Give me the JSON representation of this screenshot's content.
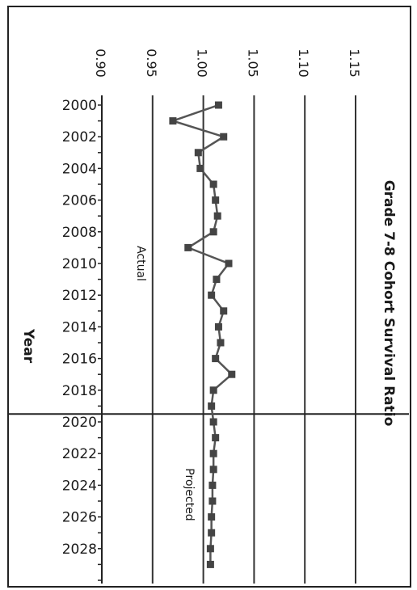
{
  "chart_data": {
    "type": "line",
    "title": "Grade 7-8 Cohort Survival Ratio",
    "xlabel": "Year",
    "ylabel": "",
    "orientation": "rotated-90-clockwise",
    "ylim": [
      0.9,
      1.15
    ],
    "ytick_values": [
      0.9,
      0.95,
      1.0,
      1.05,
      1.1,
      1.15
    ],
    "ytick_labels": [
      "0.90",
      "0.95",
      "1.00",
      "1.05",
      "1.10",
      "1.15"
    ],
    "xtick_labels": [
      "2000",
      "2002",
      "2004",
      "2006",
      "2008",
      "2010",
      "2012",
      "2014",
      "2016",
      "2018",
      "2020",
      "2022",
      "2024",
      "2026",
      "2028"
    ],
    "grid": true,
    "marker": "square",
    "x": [
      2000,
      2001,
      2002,
      2003,
      2004,
      2005,
      2006,
      2007,
      2008,
      2009,
      2010,
      2011,
      2012,
      2013,
      2014,
      2015,
      2016,
      2017,
      2018,
      2019,
      2020,
      2021,
      2022,
      2023,
      2024,
      2025,
      2026,
      2027,
      2028,
      2029
    ],
    "values": [
      1.015,
      0.97,
      1.02,
      0.995,
      0.997,
      1.01,
      1.012,
      1.014,
      1.01,
      0.985,
      1.025,
      1.013,
      1.008,
      1.02,
      1.015,
      1.017,
      1.012,
      1.028,
      1.01,
      1.008,
      1.01,
      1.012,
      1.01,
      1.01,
      1.009,
      1.009,
      1.008,
      1.008,
      1.007,
      1.007
    ],
    "divider_year": 2019.5,
    "annotations": {
      "actual": "Actual",
      "projected": "Projected"
    }
  }
}
